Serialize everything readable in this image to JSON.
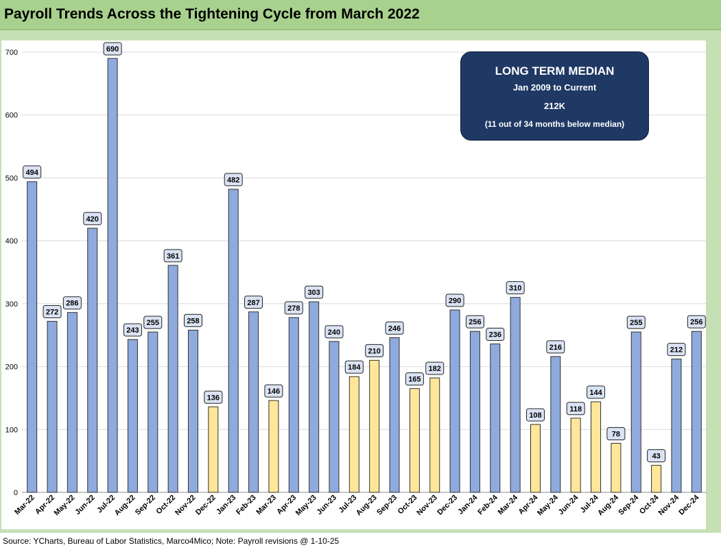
{
  "header": {
    "title": "Payroll Trends Across the Tightening Cycle from March 2022"
  },
  "median_box": {
    "title": "LONG TERM MEDIAN",
    "subtitle": "Jan 2009 to Current",
    "value": "212K",
    "note": "(11 out of 34 months below median)"
  },
  "footer": {
    "source": "Source: YCharts, Bureau of Labor Statistics, Marco4Mico; Note: Payroll revisions @ 1-10-25"
  },
  "colors": {
    "above_median": "#8faadc",
    "below_median": "#ffe699",
    "bar_outline": "#2f2f2f",
    "title_bar": "#a9d18e",
    "frame": "#c5e0b4",
    "median_box": "#1f3864"
  },
  "chart_data": {
    "type": "bar",
    "title": "Payroll Trends Across the Tightening Cycle from March 2022",
    "xlabel": "",
    "ylabel": "",
    "ylim": [
      0,
      700
    ],
    "yticks": [
      0,
      100,
      200,
      300,
      400,
      500,
      600,
      700
    ],
    "grid": true,
    "median": 212,
    "categories": [
      "Mar-22",
      "Apr-22",
      "May-22",
      "Jun-22",
      "Jul-22",
      "Aug-22",
      "Sep-22",
      "Oct-22",
      "Nov-22",
      "Dec-22",
      "Jan-23",
      "Feb-23",
      "Mar-23",
      "Apr-23",
      "May-23",
      "Jun-23",
      "Jul-23",
      "Aug-23",
      "Sep-23",
      "Oct-23",
      "Nov-23",
      "Dec-23",
      "Jan-24",
      "Feb-24",
      "Mar-24",
      "Apr-24",
      "May-24",
      "Jun-24",
      "Jul-24",
      "Aug-24",
      "Sep-24",
      "Oct-24",
      "Nov-24",
      "Dec-24"
    ],
    "values": [
      494,
      272,
      286,
      420,
      690,
      243,
      255,
      361,
      258,
      136,
      482,
      287,
      146,
      278,
      303,
      240,
      184,
      210,
      246,
      165,
      182,
      290,
      256,
      236,
      310,
      108,
      216,
      118,
      144,
      78,
      255,
      43,
      212,
      256
    ]
  }
}
